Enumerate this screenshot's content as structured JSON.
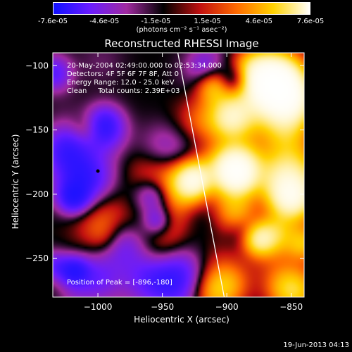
{
  "colorbar": {
    "ticks": [
      "-7.6e-05",
      "-4.6e-05",
      "-1.5e-05",
      "1.5e-05",
      "4.6e-05",
      "7.6e-05"
    ],
    "units": "(photons cm⁻² s⁻¹ asec⁻²)",
    "stops": [
      "#1010ff",
      "#6a1cff",
      "#a02aa0",
      "#000000",
      "#c01010",
      "#ff6a00",
      "#ffd200",
      "#ffffff"
    ]
  },
  "chart_data": {
    "type": "heatmap",
    "title": "Reconstructed RHESSI Image",
    "xlabel": "Heliocentric X (arcsec)",
    "ylabel": "Heliocentric Y (arcsec)",
    "xlim": [
      -1035,
      -840
    ],
    "ylim": [
      -280,
      -90
    ],
    "x_ticks": [
      -1000,
      -950,
      -900,
      -850
    ],
    "y_ticks": [
      -100,
      -150,
      -200,
      -250
    ],
    "colorbar_range": [
      -7.6e-05,
      7.6e-05
    ],
    "peak": [
      -896,
      -180
    ],
    "limb_line": [
      [
        -938,
        -90
      ],
      [
        -902,
        -280
      ]
    ],
    "annotations": {
      "time": "20-May-2004 02:49:00.000 to 02:53:34.000",
      "detectors": "Detectors: 4F 5F 6F 7F 8F, Att 0",
      "energy": "Energy Range: 12.0 - 25.0 keV",
      "clean": "Clean     Total counts: 2.39E+03",
      "peak_label": "Position of Peak = [-896,-180]"
    }
  },
  "footer": "19-Jun-2013 04:13"
}
